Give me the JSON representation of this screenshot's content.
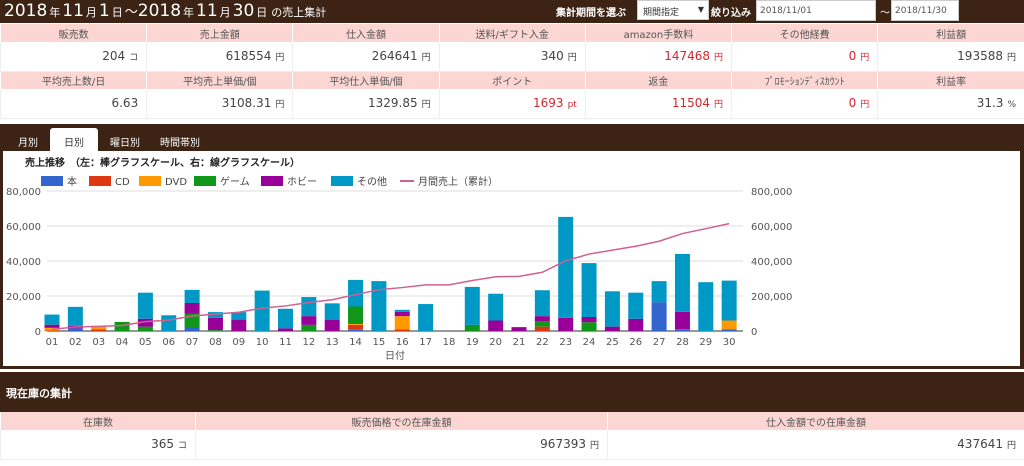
{
  "header": {
    "y1": "2018",
    "m1": "11",
    "d1": "1",
    "y2": "2018",
    "m2": "11",
    "d2": "30",
    "year_unit": "年",
    "month_unit": "月",
    "day_unit": "日",
    "tilde": "～",
    "suffix": "の売上集計",
    "period_label": "集計期間を選ぶ",
    "period_select": "期間指定",
    "filter_label": "絞り込み",
    "date_from": "2018/11/01",
    "date_sep": "～",
    "date_to": "2018/11/30"
  },
  "stats_row1": [
    {
      "label": "販売数",
      "value": "204",
      "unit": "コ"
    },
    {
      "label": "売上金額",
      "value": "618554",
      "unit": "円"
    },
    {
      "label": "仕入金額",
      "value": "264641",
      "unit": "円"
    },
    {
      "label": "送料/ギフト入金",
      "value": "340",
      "unit": "円"
    },
    {
      "label": "amazon手数料",
      "value": "147468",
      "unit": "円",
      "red": true
    },
    {
      "label": "その他経費",
      "value": "0",
      "unit": "円",
      "red": true
    },
    {
      "label": "利益額",
      "value": "193588",
      "unit": "円"
    }
  ],
  "stats_row2": [
    {
      "label": "平均売上数/日",
      "value": "6.63",
      "unit": ""
    },
    {
      "label": "平均売上単価/個",
      "value": "3108.31",
      "unit": "円"
    },
    {
      "label": "平均仕入単価/個",
      "value": "1329.85",
      "unit": "円"
    },
    {
      "label": "ポイント",
      "value": "1693",
      "unit": "pt",
      "red": true
    },
    {
      "label": "返金",
      "value": "11504",
      "unit": "円",
      "red": true
    },
    {
      "label": "ﾌﾟﾛﾓｰｼｮﾝﾃﾞｨｽｶｳﾝﾄ",
      "value": "0",
      "unit": "円",
      "red": true
    },
    {
      "label": "利益率",
      "value": "31.3",
      "unit": "%"
    }
  ],
  "tabs": [
    "月別",
    "日別",
    "曜日別",
    "時間帯別"
  ],
  "active_tab": 1,
  "chart_data": {
    "type": "bar",
    "title": "売上推移　（左：棒グラフスケール、右：線グラフスケール）",
    "xlabel": "日付",
    "categories": [
      "01",
      "02",
      "03",
      "04",
      "05",
      "06",
      "07",
      "08",
      "09",
      "10",
      "11",
      "12",
      "13",
      "14",
      "15",
      "16",
      "17",
      "18",
      "19",
      "20",
      "21",
      "22",
      "23",
      "24",
      "25",
      "26",
      "27",
      "28",
      "29",
      "30"
    ],
    "ylim": [
      0,
      80000
    ],
    "y_ticks": [
      "0",
      "20,000",
      "40,000",
      "60,000",
      "80,000"
    ],
    "y2lim": [
      0,
      800000
    ],
    "y2_ticks": [
      "0",
      "200,000",
      "400,000",
      "600,000",
      "800,000"
    ],
    "grid": true,
    "legend": "top-left",
    "stacked": true,
    "series": [
      {
        "name": "本",
        "color": "#3366cc",
        "values": [
          0,
          1500,
          0,
          0,
          0,
          0,
          2000,
          0,
          0,
          0,
          0,
          0,
          0,
          1000,
          0,
          0,
          0,
          0,
          0,
          0,
          0,
          0,
          0,
          0,
          0,
          0,
          16500,
          1000,
          0,
          1000
        ]
      },
      {
        "name": "CD",
        "color": "#dc3912",
        "values": [
          300,
          0,
          1000,
          0,
          0,
          0,
          0,
          0,
          0,
          0,
          0,
          0,
          0,
          2500,
          0,
          1000,
          0,
          0,
          0,
          0,
          0,
          2500,
          0,
          0,
          0,
          0,
          0,
          0,
          0,
          0
        ]
      },
      {
        "name": "DVD",
        "color": "#ff9900",
        "values": [
          1500,
          0,
          2000,
          0,
          0,
          0,
          0,
          0,
          0,
          0,
          0,
          0,
          0,
          500,
          0,
          7500,
          0,
          0,
          0,
          0,
          0,
          0,
          0,
          0,
          0,
          0,
          0,
          0,
          0,
          5000
        ]
      },
      {
        "name": "ゲーム",
        "color": "#109618",
        "values": [
          0,
          0,
          0,
          5200,
          2500,
          0,
          8000,
          500,
          0,
          0,
          0,
          3500,
          0,
          10000,
          0,
          0,
          0,
          0,
          3500,
          0,
          0,
          3000,
          0,
          5000,
          0,
          0,
          0,
          0,
          0,
          0
        ]
      },
      {
        "name": "ホビー",
        "color": "#990099",
        "values": [
          1800,
          1500,
          0,
          0,
          4500,
          0,
          6000,
          7000,
          6500,
          0,
          1500,
          5000,
          6500,
          0,
          0,
          2500,
          0,
          0,
          0,
          6000,
          2000,
          3000,
          7500,
          3000,
          2500,
          7000,
          0,
          10000,
          0,
          0
        ]
      },
      {
        "name": "その他",
        "color": "#0099c6",
        "values": [
          5800,
          10800,
          0,
          0,
          14900,
          9000,
          7500,
          3300,
          4300,
          23100,
          11200,
          10900,
          9300,
          15200,
          28500,
          1100,
          15400,
          0,
          21700,
          15300,
          300,
          14800,
          57700,
          30800,
          20200,
          14900,
          12000,
          33000,
          27900,
          22800
        ]
      }
    ],
    "line": {
      "name": "月間売上（累計）",
      "color": "#d06090",
      "axis": "right",
      "values": [
        9400,
        23200,
        26200,
        31400,
        53300,
        62300,
        85800,
        96600,
        107400,
        130500,
        143200,
        162600,
        178400,
        207600,
        236100,
        248200,
        263600,
        263600,
        288800,
        310100,
        312400,
        335700,
        400900,
        439700,
        462400,
        484300,
        512800,
        556800,
        584700,
        613500
      ]
    }
  },
  "inventory": {
    "title": "現在庫の集計",
    "cols": [
      {
        "label": "在庫数",
        "value": "365",
        "unit": "コ"
      },
      {
        "label": "販売価格での在庫金額",
        "value": "967393",
        "unit": "円"
      },
      {
        "label": "仕入金額での在庫金額",
        "value": "437641",
        "unit": "円"
      }
    ]
  }
}
